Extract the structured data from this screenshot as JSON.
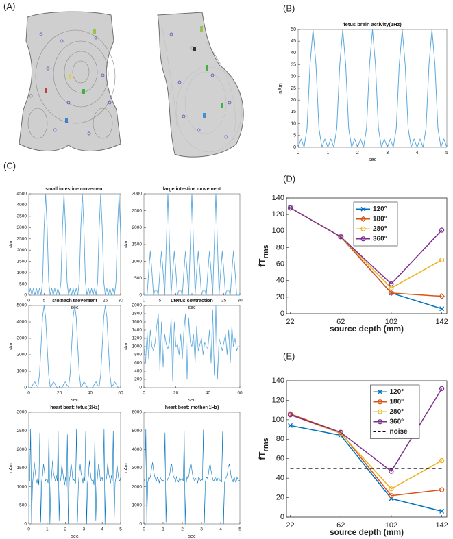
{
  "panels": [
    "(A)",
    "(B)",
    "(C)",
    "(D)",
    "(E)"
  ],
  "chart_data": [
    {
      "type": "line",
      "title": "fetus brain activity(1Hz)",
      "xlabel": "sec",
      "ylabel": "nAm",
      "color": "#5aa8dc",
      "x": [
        0,
        0.1,
        0.2,
        0.3,
        0.4,
        0.5,
        0.6,
        0.7,
        0.8,
        0.9,
        1,
        1.1,
        1.2,
        1.3,
        1.4,
        1.5,
        1.6,
        1.7,
        1.8,
        1.9,
        2,
        2.1,
        2.2,
        2.3,
        2.4,
        2.5,
        2.6,
        2.7,
        2.8,
        2.9,
        3,
        3.1,
        3.2,
        3.3,
        3.4,
        3.5,
        3.6,
        3.7,
        3.8,
        3.9,
        4,
        4.1,
        4.2,
        4.3,
        4.4,
        4.5,
        4.6,
        4.7,
        4.8,
        4.9,
        5
      ],
      "values": [
        0,
        3.5,
        0,
        8,
        35,
        50,
        35,
        8,
        0,
        3.5,
        0,
        3.5,
        0,
        8,
        35,
        50,
        35,
        8,
        0,
        3.5,
        0,
        3.5,
        0,
        8,
        35,
        50,
        35,
        8,
        0,
        3.5,
        0,
        3.5,
        0,
        8,
        35,
        50,
        35,
        8,
        0,
        3.5,
        0,
        3.5,
        0,
        8,
        35,
        50,
        35,
        8,
        0,
        3.5,
        0
      ],
      "xlim": [
        0,
        5
      ],
      "xticks": [
        0,
        1,
        2,
        3,
        4,
        5
      ],
      "ylim": [
        0,
        50
      ],
      "yticks": [
        0,
        5,
        10,
        15,
        20,
        25,
        30,
        35,
        40,
        45,
        50
      ]
    },
    {
      "type": "line",
      "title": "small intestine movement",
      "xlabel": "sec",
      "ylabel": "nAm",
      "color": "#5aa8dc",
      "x": [
        0,
        0.5,
        1,
        1.5,
        2,
        2.5,
        3,
        3.5,
        4,
        4.5,
        5,
        5.5,
        6,
        6.5,
        7,
        7.5,
        8,
        8.5,
        9,
        9.5,
        10,
        10.5,
        11,
        11.5,
        12,
        12.5,
        13,
        13.5,
        14,
        14.5,
        15,
        15.5,
        16,
        16.5,
        17,
        17.5,
        18,
        18.5,
        19,
        19.5,
        20,
        20.5,
        21,
        21.5,
        22,
        22.5,
        23,
        23.5,
        24,
        24.5,
        25,
        25.5,
        26,
        26.5,
        27,
        27.5,
        28,
        28.5,
        29,
        29.5,
        30
      ],
      "values": [
        0,
        300,
        0,
        300,
        0,
        300,
        0,
        300,
        0,
        600,
        3000,
        4500,
        3000,
        600,
        0,
        300,
        0,
        300,
        0,
        300,
        0,
        600,
        3000,
        4500,
        3000,
        600,
        0,
        300,
        0,
        300,
        0,
        300,
        0,
        600,
        3000,
        4500,
        3000,
        600,
        0,
        300,
        0,
        300,
        0,
        300,
        0,
        600,
        3000,
        4500,
        3000,
        600,
        0,
        300,
        0,
        300,
        0,
        300,
        0,
        600,
        3000,
        4500,
        2700
      ],
      "xlim": [
        0,
        30
      ],
      "xticks": [
        0,
        5,
        10,
        15,
        20,
        25,
        30
      ],
      "ylim": [
        0,
        4500
      ],
      "yticks": [
        0,
        500,
        1000,
        1500,
        2000,
        2500,
        3000,
        3500,
        4000,
        4500
      ]
    },
    {
      "type": "line",
      "title": "large intestine movement",
      "xlabel": "sec",
      "ylabel": "nAm",
      "color": "#5aa8dc",
      "x": [
        0,
        0.5,
        1,
        1.5,
        2,
        2.5,
        3,
        3.5,
        4,
        4.5,
        5,
        5.5,
        6,
        6.5,
        7,
        7.5,
        8,
        8.5,
        9,
        9.5,
        10,
        10.5,
        11,
        11.5,
        12,
        12.5,
        13,
        13.5,
        14,
        14.5,
        15,
        15.5,
        16,
        16.5,
        17,
        17.5,
        18,
        18.5,
        19,
        19.5,
        20,
        20.5,
        21,
        21.5,
        22,
        22.5,
        23,
        23.5,
        24,
        24.5,
        25,
        25.5,
        26,
        26.5,
        27,
        27.5,
        28,
        28.5,
        29,
        29.5,
        30
      ],
      "values": [
        0,
        0,
        0,
        700,
        1300,
        700,
        0,
        150,
        150,
        0,
        700,
        1300,
        700,
        0,
        1500,
        3000,
        1500,
        0,
        700,
        1300,
        700,
        0,
        150,
        150,
        0,
        700,
        1300,
        700,
        0,
        1500,
        3000,
        1500,
        0,
        700,
        1300,
        700,
        0,
        150,
        150,
        0,
        700,
        1300,
        700,
        0,
        1500,
        3000,
        1500,
        0,
        700,
        1300,
        700,
        0,
        150,
        150,
        0,
        700,
        1300,
        700,
        0,
        0,
        0
      ],
      "xlim": [
        0,
        30
      ],
      "xticks": [
        0,
        5,
        10,
        15,
        20,
        25,
        30
      ],
      "ylim": [
        0,
        3000
      ],
      "yticks": [
        0,
        500,
        1000,
        1500,
        2000,
        2500,
        3000
      ]
    },
    {
      "type": "line",
      "title": "stomach movement",
      "xlabel": "sec",
      "ylabel": "nAm",
      "color": "#5aa8dc",
      "x": [
        0,
        1,
        2,
        3,
        4,
        5,
        6,
        7,
        8,
        9,
        10,
        11,
        12,
        13,
        14,
        15,
        16,
        17,
        18,
        19,
        20,
        21,
        22,
        23,
        24,
        25,
        26,
        27,
        28,
        29,
        30,
        31,
        32,
        33,
        34,
        35,
        36,
        37,
        38,
        39,
        40,
        41,
        42,
        43,
        44,
        45,
        46,
        47,
        48,
        49,
        50,
        51,
        52,
        53,
        54,
        55,
        56,
        57,
        58,
        59,
        60
      ],
      "values": [
        0,
        0,
        50,
        250,
        350,
        150,
        50,
        800,
        2500,
        4300,
        5000,
        4300,
        2500,
        800,
        50,
        150,
        350,
        250,
        50,
        0,
        0,
        0,
        50,
        250,
        350,
        150,
        50,
        800,
        2500,
        4300,
        5000,
        4300,
        2500,
        800,
        50,
        150,
        350,
        250,
        50,
        0,
        0,
        0,
        50,
        250,
        350,
        150,
        50,
        800,
        2500,
        4300,
        5000,
        4300,
        2500,
        800,
        50,
        150,
        350,
        250,
        50,
        0,
        0
      ],
      "xlim": [
        0,
        60
      ],
      "xticks": [
        0,
        20,
        40,
        60
      ],
      "ylim": [
        0,
        5000
      ],
      "yticks": [
        0,
        1000,
        2000,
        3000,
        4000,
        5000
      ]
    },
    {
      "type": "line",
      "title": "uterus contraction",
      "xlabel": "sec",
      "ylabel": "nAm",
      "color": "#5aa8dc",
      "x": [
        0,
        1,
        2,
        3,
        4,
        5,
        6,
        7,
        8,
        9,
        10,
        11,
        12,
        13,
        14,
        15,
        16,
        17,
        18,
        19,
        20,
        21,
        22,
        23,
        24,
        25,
        26,
        27,
        28,
        29,
        30,
        31,
        32,
        33,
        34,
        35,
        36,
        37,
        38,
        39,
        40,
        41,
        42,
        43,
        44,
        45,
        46,
        47,
        48,
        49,
        50,
        51,
        52,
        53,
        54,
        55,
        56,
        57,
        58,
        59,
        60
      ],
      "values": [
        1000,
        600,
        1350,
        700,
        1400,
        1000,
        900,
        1100,
        1500,
        1800,
        400,
        1600,
        500,
        1300,
        1050,
        950,
        1100,
        1700,
        150,
        1600,
        1000,
        1050,
        800,
        1300,
        700,
        1400,
        1800,
        200,
        1700,
        1100,
        1000,
        1300,
        600,
        1500,
        900,
        1050,
        1200,
        800,
        1100,
        1000,
        950,
        1400,
        600,
        1900,
        300,
        2000,
        200,
        1200,
        1050,
        900,
        1100,
        1300,
        800,
        1400,
        600,
        1500,
        1000,
        1200,
        900,
        1000,
        1000
      ],
      "xlim": [
        0,
        60
      ],
      "xticks": [
        0,
        20,
        40,
        60
      ],
      "ylim": [
        0,
        2000
      ],
      "yticks": [
        0,
        200,
        400,
        600,
        800,
        1000,
        1200,
        1400,
        1600,
        1800,
        2000
      ]
    },
    {
      "type": "line",
      "title": "heart beat: fetus(2Hz)",
      "xlabel": "sec",
      "ylabel": "nAm",
      "color": "#0072bd",
      "x": [
        0,
        0.05,
        0.1,
        0.15,
        0.2,
        0.25,
        0.3,
        0.35,
        0.4,
        0.45,
        0.5,
        0.55,
        0.6,
        0.65,
        0.7,
        0.75,
        0.8,
        0.85,
        0.9,
        0.95,
        1,
        1.05,
        1.1,
        1.15,
        1.2,
        1.25,
        1.3,
        1.35,
        1.4,
        1.45,
        1.5,
        1.55,
        1.6,
        1.65,
        1.7,
        1.75,
        1.8,
        1.85,
        1.9,
        1.95,
        2,
        2.05,
        2.1,
        2.15,
        2.2,
        2.25,
        2.3,
        2.35,
        2.4,
        2.45,
        2.5,
        2.55,
        2.6,
        2.65,
        2.7,
        2.75,
        2.8,
        2.85,
        2.9,
        2.95,
        3,
        3.05,
        3.1,
        3.15,
        3.2,
        3.25,
        3.3,
        3.35,
        3.4,
        3.45,
        3.5,
        3.55,
        3.6,
        3.65,
        3.7,
        3.75,
        3.8,
        3.85,
        3.9,
        3.95,
        4,
        4.05,
        4.1,
        4.15,
        4.2,
        4.25,
        4.3,
        4.35,
        4.4,
        4.45,
        4.5,
        4.55,
        4.6,
        4.65,
        4.7,
        4.75,
        4.8,
        4.85,
        4.9,
        4.95,
        5
      ],
      "values": [
        1300,
        1150,
        2550,
        0,
        1050,
        1350,
        1650,
        1400,
        1200,
        1100,
        1250,
        1050,
        2450,
        50,
        1150,
        1300,
        1600,
        1450,
        1150,
        1200,
        1200,
        1100,
        2550,
        0,
        1000,
        1350,
        1700,
        1350,
        1250,
        1150,
        1300,
        1150,
        2500,
        100,
        1100,
        1250,
        1600,
        1400,
        1200,
        1050,
        1250,
        1000,
        2400,
        0,
        1150,
        1300,
        1650,
        1450,
        1150,
        1200,
        1150,
        1100,
        2550,
        50,
        1050,
        1400,
        1600,
        1350,
        1250,
        1100,
        1300,
        1150,
        2500,
        0,
        1100,
        1300,
        1700,
        1400,
        1200,
        1150,
        1200,
        1050,
        2450,
        100,
        1000,
        1350,
        1600,
        1450,
        1150,
        1200,
        1250,
        1100,
        2550,
        0,
        1150,
        1300,
        1650,
        1350,
        1250,
        1100,
        1300,
        1150,
        2500,
        50,
        1100,
        1250,
        1600,
        1400,
        1200,
        1150,
        1250
      ],
      "xlim": [
        0,
        5
      ],
      "xticks": [
        0,
        1,
        2,
        3,
        4,
        5
      ],
      "ylim": [
        0,
        3000
      ],
      "yticks": [
        0,
        500,
        1000,
        1500,
        2000,
        2500,
        3000
      ]
    },
    {
      "type": "line",
      "title": "heart beat: mother(1Hz)",
      "xlabel": "sec",
      "ylabel": "nAm",
      "color": "#0072bd",
      "x": [
        0,
        0.05,
        0.1,
        0.15,
        0.2,
        0.25,
        0.3,
        0.35,
        0.4,
        0.45,
        0.5,
        0.55,
        0.6,
        0.65,
        0.7,
        0.75,
        0.8,
        0.85,
        0.9,
        0.95,
        1,
        1.05,
        1.1,
        1.15,
        1.2,
        1.25,
        1.3,
        1.35,
        1.4,
        1.45,
        1.5,
        1.55,
        1.6,
        1.65,
        1.7,
        1.75,
        1.8,
        1.85,
        1.9,
        1.95,
        2,
        2.05,
        2.1,
        2.15,
        2.2,
        2.25,
        2.3,
        2.35,
        2.4,
        2.45,
        2.5,
        2.55,
        2.6,
        2.65,
        2.7,
        2.75,
        2.8,
        2.85,
        2.9,
        2.95,
        3,
        3.05,
        3.1,
        3.15,
        3.2,
        3.25,
        3.3,
        3.35,
        3.4,
        3.45,
        3.5,
        3.55,
        3.6,
        3.65,
        3.7,
        3.75,
        3.8,
        3.85,
        3.9,
        3.95,
        4,
        4.05,
        4.1,
        4.15,
        4.2,
        4.25,
        4.3,
        4.35,
        4.4,
        4.45,
        4.5,
        4.55,
        4.6,
        4.65,
        4.7,
        4.75,
        4.8,
        4.85,
        4.9,
        4.95,
        5
      ],
      "values": [
        2400,
        2300,
        5100,
        0,
        2200,
        2500,
        2400,
        2600,
        3000,
        3300,
        2900,
        2600,
        2400,
        2300,
        2500,
        2400,
        2200,
        2500,
        2400,
        2300,
        2350,
        2250,
        4900,
        100,
        2300,
        2450,
        2500,
        2700,
        3100,
        3200,
        2800,
        2500,
        2450,
        2250,
        2550,
        2350,
        2250,
        2450,
        2350,
        2400,
        2450,
        2300,
        5000,
        0,
        2150,
        2550,
        2400,
        2650,
        3050,
        3300,
        2900,
        2550,
        2400,
        2300,
        2450,
        2400,
        2200,
        2500,
        2450,
        2300,
        2400,
        2350,
        5050,
        50,
        2250,
        2500,
        2450,
        2600,
        3000,
        3250,
        2850,
        2600,
        2350,
        2300,
        2500,
        2450,
        2250,
        2450,
        2400,
        2350,
        2350,
        2250,
        4950,
        0,
        2200,
        2450,
        2500,
        2700,
        3100,
        3200,
        2900,
        2500,
        2400,
        2250,
        2550,
        2350,
        2200,
        2500,
        2400,
        2300,
        2350
      ],
      "xlim": [
        0,
        5
      ],
      "xticks": [
        0,
        1,
        2,
        3,
        4,
        5
      ],
      "ylim": [
        0,
        6000
      ],
      "yticks": [
        0,
        1000,
        2000,
        3000,
        4000,
        5000,
        6000
      ]
    },
    {
      "type": "line",
      "xlabel": "source depth (mm)",
      "ylabel": "fT",
      "ylabel_sub": "rms",
      "legend": "north",
      "x": [
        22,
        62,
        102,
        142
      ],
      "xlim": [
        19,
        146
      ],
      "xticks": [
        22,
        62,
        102,
        142
      ],
      "ylim": [
        0,
        140
      ],
      "yticks": [
        0,
        20,
        40,
        60,
        80,
        100,
        120,
        140
      ],
      "series": [
        {
          "name": "120°",
          "color": "#0072bd",
          "marker": "x",
          "values": [
            128,
            93,
            25,
            6
          ]
        },
        {
          "name": "180°",
          "color": "#d95319",
          "marker": "diamond",
          "values": [
            128,
            93,
            25,
            21
          ]
        },
        {
          "name": "280°",
          "color": "#edb120",
          "marker": "circle",
          "values": [
            128,
            93,
            31,
            65
          ]
        },
        {
          "name": "360°",
          "color": "#7e2f8e",
          "marker": "circle",
          "values": [
            128,
            93,
            36,
            101
          ]
        }
      ]
    },
    {
      "type": "line",
      "xlabel": "source depth (mm)",
      "ylabel": "fT",
      "ylabel_sub": "rms",
      "legend": "northeast",
      "x": [
        22,
        62,
        102,
        142
      ],
      "xlim": [
        19,
        146
      ],
      "xticks": [
        22,
        62,
        102,
        142
      ],
      "ylim": [
        0,
        140
      ],
      "yticks": [
        0,
        20,
        40,
        60,
        80,
        100,
        120,
        140
      ],
      "series": [
        {
          "name": "120°",
          "color": "#0072bd",
          "marker": "x",
          "values": [
            94,
            84,
            19,
            6
          ]
        },
        {
          "name": "180°",
          "color": "#d95319",
          "marker": "circle",
          "values": [
            106,
            87,
            22,
            28
          ]
        },
        {
          "name": "280°",
          "color": "#edb120",
          "marker": "circle",
          "values": [
            105,
            86,
            29,
            58
          ]
        },
        {
          "name": "360°",
          "color": "#7e2f8e",
          "marker": "circle",
          "values": [
            105,
            87,
            47,
            132
          ]
        },
        {
          "name": "noise",
          "color": "#000000",
          "dashed": true,
          "values": [
            50,
            50,
            50,
            50
          ]
        }
      ]
    }
  ]
}
